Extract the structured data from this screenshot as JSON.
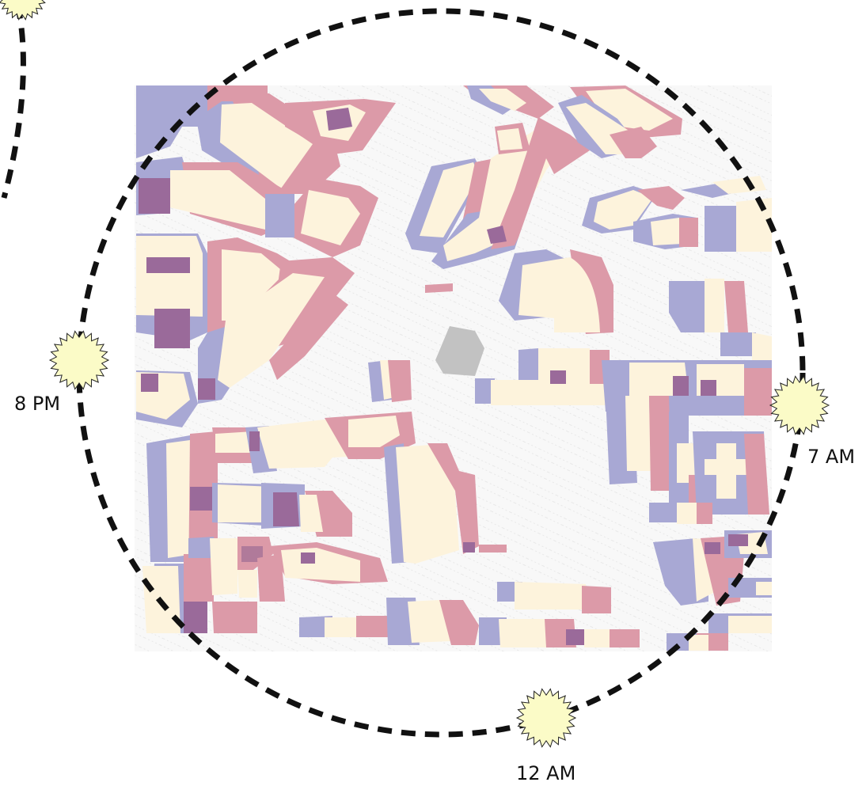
{
  "time_labels": {
    "evening": "8 PM",
    "morning": "7 AM",
    "noon": "12 AM"
  },
  "colors": {
    "background": "#ffffff",
    "map_ground": "#f7f7f7",
    "building": "#fdf3dc",
    "shadow_morning": "#a8a8d4",
    "shadow_evening": "#dc9aa8",
    "shadow_overlap": "#9a6a9a",
    "plaza": "#c2c2c2",
    "sun_path": "#111111",
    "sun_fill": "#fbfbc7",
    "sun_stroke": "#222222"
  },
  "icons": [
    "sun-icon"
  ]
}
